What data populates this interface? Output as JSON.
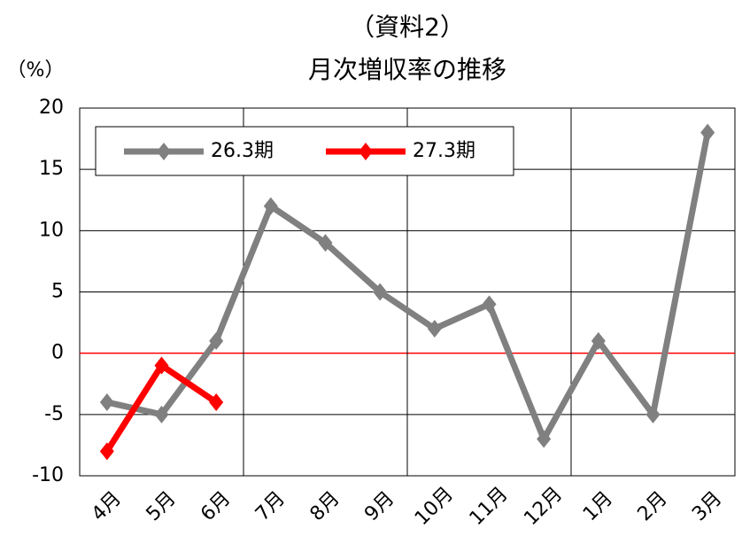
{
  "chart_data": {
    "type": "line",
    "title_lines": [
      "（資料2）",
      "月次増収率の推移"
    ],
    "y_label": "（%）",
    "categories": [
      "4月",
      "5月",
      "6月",
      "7月",
      "8月",
      "9月",
      "10月",
      "11月",
      "12月",
      "1月",
      "2月",
      "3月"
    ],
    "series": [
      {
        "name": "26.3期",
        "color": "#808080",
        "values": [
          -4,
          -5,
          1,
          12,
          9,
          5,
          2,
          4,
          -7,
          1,
          -5,
          18
        ]
      },
      {
        "name": "27.3期",
        "color": "#ff0000",
        "values": [
          -8,
          -1,
          -4,
          null,
          null,
          null,
          null,
          null,
          null,
          null,
          null,
          null
        ]
      }
    ],
    "ylim": [
      -10,
      20
    ],
    "yticks": [
      -10,
      -5,
      0,
      5,
      10,
      15,
      20
    ],
    "grid": true,
    "zero_line_color": "#ff0000",
    "legend": "top-left"
  }
}
